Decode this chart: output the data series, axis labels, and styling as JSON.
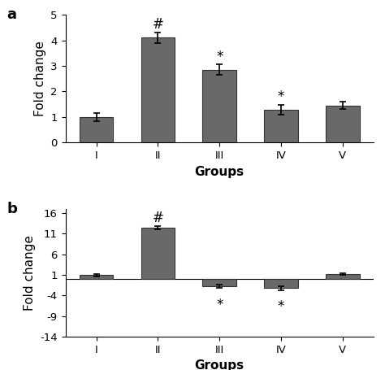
{
  "chart_a": {
    "categories": [
      "I",
      "II",
      "III",
      "IV",
      "V"
    ],
    "values": [
      1.0,
      4.1,
      2.85,
      1.28,
      1.45
    ],
    "errors": [
      0.15,
      0.22,
      0.2,
      0.2,
      0.15
    ],
    "annot_text": [
      "",
      "#",
      "*",
      "*",
      ""
    ],
    "annot_above": [
      0,
      4.35,
      3.08,
      1.52,
      0
    ],
    "ylabel": "Fold change",
    "xlabel": "Groups",
    "ylim": [
      0,
      5
    ],
    "yticks": [
      0,
      1,
      2,
      3,
      4,
      5
    ],
    "panel_label": "a"
  },
  "chart_b": {
    "categories": [
      "I",
      "II",
      "III",
      "IV",
      "V"
    ],
    "values": [
      1.0,
      12.5,
      -1.8,
      -2.2,
      1.2
    ],
    "errors": [
      0.3,
      0.4,
      0.35,
      0.45,
      0.18
    ],
    "annot_text_above": [
      "",
      "#",
      "",
      "",
      ""
    ],
    "annot_above_pos": [
      0,
      13.1,
      0,
      0,
      0
    ],
    "annot_text_below": [
      "",
      "",
      "*",
      "*",
      ""
    ],
    "annot_below_pos": [
      0,
      0,
      -4.5,
      -5.0,
      0
    ],
    "ylabel": "Fold change",
    "xlabel": "Groups",
    "ylim": [
      -14,
      17
    ],
    "yticks": [
      16,
      11,
      6,
      1,
      -4,
      -9,
      -14
    ],
    "ytick_labels": [
      "16",
      "11",
      "6",
      "1",
      "-4",
      "-9",
      "-14"
    ],
    "panel_label": "b"
  },
  "bar_color": "#696969",
  "bar_width": 0.55,
  "bar_edgecolor": "#333333",
  "annotation_fontsize": 12,
  "panel_label_fontsize": 13,
  "axis_label_fontsize": 11,
  "tick_fontsize": 9.5
}
